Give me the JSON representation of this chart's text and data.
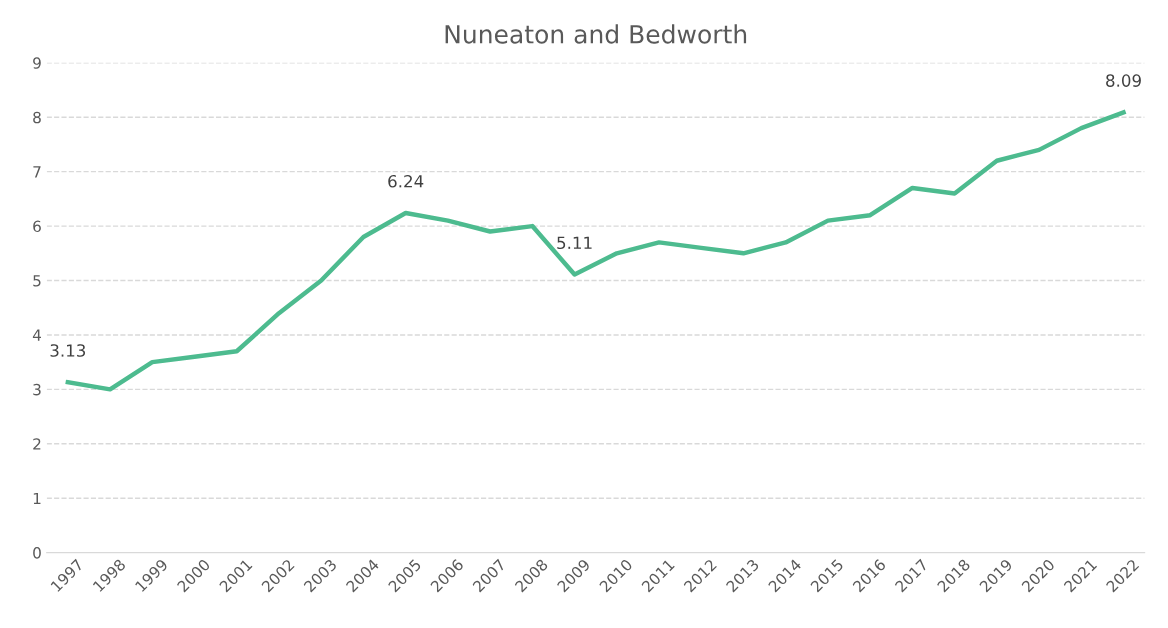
{
  "chart_data": {
    "type": "line",
    "title": "Nuneaton and Bedworth",
    "categories": [
      "1997",
      "1998",
      "1999",
      "2000",
      "2001",
      "2002",
      "2003",
      "2004",
      "2005",
      "2006",
      "2007",
      "2008",
      "2009",
      "2010",
      "2011",
      "2012",
      "2013",
      "2014",
      "2015",
      "2016",
      "2017",
      "2018",
      "2019",
      "2020",
      "2021",
      "2022"
    ],
    "series": [
      {
        "color": "#4dbb8f",
        "values": [
          3.13,
          3.0,
          3.5,
          3.6,
          3.7,
          4.4,
          5.0,
          5.8,
          6.24,
          6.1,
          5.9,
          6.0,
          5.11,
          5.5,
          5.7,
          5.6,
          5.5,
          5.7,
          6.1,
          6.2,
          6.7,
          6.6,
          7.2,
          7.4,
          7.8,
          8.09
        ],
        "value_labels": [
          "3.13",
          null,
          null,
          null,
          null,
          null,
          null,
          null,
          "6.24",
          null,
          null,
          null,
          "5.11",
          null,
          null,
          null,
          null,
          null,
          null,
          null,
          null,
          null,
          null,
          null,
          null,
          "8.09"
        ]
      }
    ],
    "ylim": [
      0,
      9
    ],
    "yticks": [
      0,
      1,
      2,
      3,
      4,
      5,
      6,
      7,
      8,
      9
    ],
    "grid": "y",
    "legend": false,
    "marker": "none",
    "line_style": "solid"
  }
}
